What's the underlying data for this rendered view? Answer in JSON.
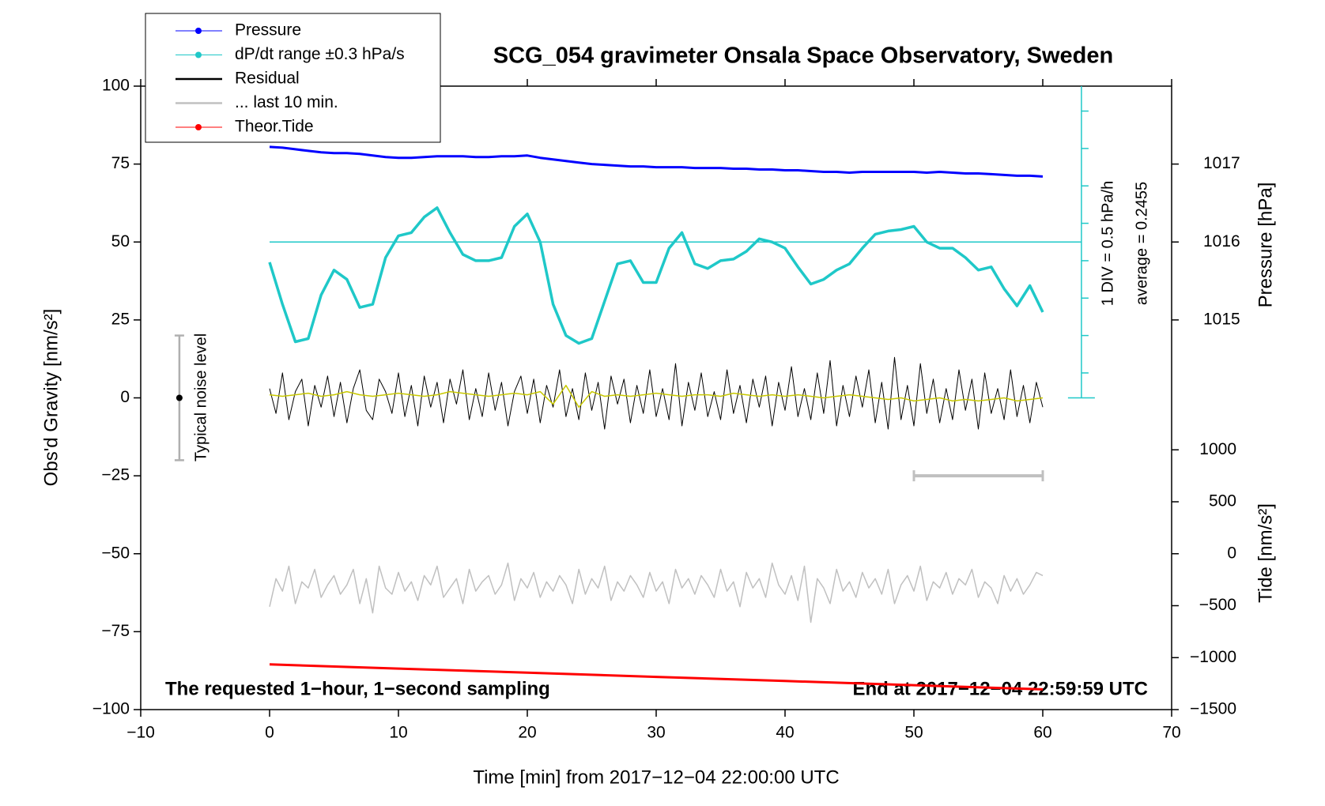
{
  "chart_data": {
    "type": "line",
    "title": "SCG_054 gravimeter Onsala Space Observatory, Sweden",
    "xlabel": "Time [min] from 2017−12−04 22:00:00 UTC",
    "ylabel": "Obs'd Gravity [nm/s²]",
    "y2label": "Pressure [hPa]",
    "y3label": "Tide [nm/s²]",
    "xlim": [
      -10,
      70
    ],
    "xticks": [
      {
        "value": -10,
        "label": "−10"
      },
      0,
      10,
      20,
      30,
      40,
      50,
      60,
      70
    ],
    "ylim": [
      -100,
      100
    ],
    "yticks": [
      {
        "value": -100,
        "label": "−100"
      },
      {
        "value": -75,
        "label": "−75"
      },
      {
        "value": -50,
        "label": "−50"
      },
      {
        "value": -25,
        "label": "−25"
      },
      0,
      25,
      50,
      75,
      100
    ],
    "y2lim": [
      1010,
      1018
    ],
    "y2ticks": [
      1015,
      1016,
      1017
    ],
    "y3lim": [
      -1500,
      4500
    ],
    "y3ticks": [
      {
        "value": -1500,
        "label": "−1500"
      },
      {
        "value": -1000,
        "label": "−1000"
      },
      {
        "value": -500,
        "label": "−500"
      },
      0,
      500,
      1000
    ],
    "legend": "top-left",
    "series": [
      {
        "name": "Pressure",
        "color": "#0000ff",
        "marker": "dot",
        "axis": "y2",
        "x": [
          0,
          1,
          2,
          3,
          4,
          5,
          6,
          7,
          8,
          9,
          10,
          11,
          12,
          13,
          14,
          15,
          16,
          17,
          18,
          19,
          20,
          21,
          22,
          23,
          24,
          25,
          26,
          27,
          28,
          29,
          30,
          31,
          32,
          33,
          34,
          35,
          36,
          37,
          38,
          39,
          40,
          41,
          42,
          43,
          44,
          45,
          46,
          47,
          48,
          49,
          50,
          51,
          52,
          53,
          54,
          55,
          56,
          57,
          58,
          59,
          60
        ],
        "values": [
          1017.22,
          1017.21,
          1017.19,
          1017.17,
          1017.15,
          1017.14,
          1017.14,
          1017.13,
          1017.11,
          1017.09,
          1017.08,
          1017.08,
          1017.09,
          1017.1,
          1017.1,
          1017.1,
          1017.09,
          1017.09,
          1017.1,
          1017.1,
          1017.11,
          1017.08,
          1017.06,
          1017.04,
          1017.02,
          1017.0,
          1016.99,
          1016.98,
          1016.97,
          1016.97,
          1016.96,
          1016.96,
          1016.96,
          1016.95,
          1016.95,
          1016.95,
          1016.94,
          1016.94,
          1016.93,
          1016.93,
          1016.92,
          1016.92,
          1016.91,
          1016.9,
          1016.9,
          1016.89,
          1016.9,
          1016.9,
          1016.9,
          1016.9,
          1016.9,
          1016.89,
          1016.9,
          1016.89,
          1016.88,
          1016.88,
          1016.87,
          1016.86,
          1016.85,
          1016.85,
          1016.84
        ]
      },
      {
        "name": "dP/dt range ±0.3 hPa/s",
        "color": "#1fc8c8",
        "marker": "dot",
        "x": [
          0,
          1,
          2,
          3,
          4,
          5,
          6,
          7,
          8,
          9,
          10,
          11,
          12,
          13,
          14,
          15,
          16,
          17,
          18,
          19,
          20,
          21,
          22,
          23,
          24,
          25,
          26,
          27,
          28,
          29,
          30,
          31,
          32,
          33,
          34,
          35,
          36,
          37,
          38,
          39,
          40,
          41,
          42,
          43,
          44,
          45,
          46,
          47,
          48,
          49,
          50,
          51,
          52,
          53,
          54,
          55,
          56,
          57,
          58,
          59,
          60
        ],
        "values": [
          43.5,
          30,
          18,
          19,
          33,
          41,
          38,
          29,
          30,
          45,
          52,
          53,
          58,
          61,
          53,
          46,
          44,
          44,
          45,
          55,
          59,
          50,
          30,
          20,
          17.5,
          19,
          31,
          43,
          44,
          37,
          37,
          48,
          53,
          43,
          41.5,
          44,
          44.5,
          47,
          51,
          50,
          48,
          42,
          36.5,
          38,
          41,
          43,
          48,
          52.5,
          53.5,
          54,
          55,
          50,
          48,
          48,
          45,
          41,
          42,
          35,
          29.5,
          36,
          27.5
        ]
      },
      {
        "name": "Residual",
        "color": "#000000",
        "x": [
          0,
          0.5,
          1,
          1.5,
          2,
          2.5,
          3,
          3.5,
          4,
          4.5,
          5,
          5.5,
          6,
          6.5,
          7,
          7.5,
          8,
          8.5,
          9,
          9.5,
          10,
          10.5,
          11,
          11.5,
          12,
          12.5,
          13,
          13.5,
          14,
          14.5,
          15,
          15.5,
          16,
          16.5,
          17,
          17.5,
          18,
          18.5,
          19,
          19.5,
          20,
          20.5,
          21,
          21.5,
          22,
          22.5,
          23,
          23.5,
          24,
          24.5,
          25,
          25.5,
          26,
          26.5,
          27,
          27.5,
          28,
          28.5,
          29,
          29.5,
          30,
          30.5,
          31,
          31.5,
          32,
          32.5,
          33,
          33.5,
          34,
          34.5,
          35,
          35.5,
          36,
          36.5,
          37,
          37.5,
          38,
          38.5,
          39,
          39.5,
          40,
          40.5,
          41,
          41.5,
          42,
          42.5,
          43,
          43.5,
          44,
          44.5,
          45,
          45.5,
          46,
          46.5,
          47,
          47.5,
          48,
          48.5,
          49,
          49.5,
          50,
          50.5,
          51,
          51.5,
          52,
          52.5,
          53,
          53.5,
          54,
          54.5,
          55,
          55.5,
          56,
          56.5,
          57,
          57.5,
          58,
          58.5,
          59,
          59.5,
          60
        ],
        "values": [
          3,
          -5,
          8,
          -7,
          2,
          6,
          -9,
          4,
          -3,
          7,
          -6,
          5,
          -8,
          3,
          9,
          -4,
          -7,
          6,
          2,
          -5,
          8,
          -6,
          4,
          -9,
          7,
          -3,
          5,
          -8,
          6,
          -2,
          9,
          -7,
          3,
          -6,
          8,
          -4,
          5,
          -9,
          2,
          7,
          -5,
          6,
          -8,
          4,
          -3,
          9,
          -6,
          3,
          -7,
          8,
          -4,
          5,
          -10,
          7,
          -2,
          6,
          -8,
          4,
          -5,
          9,
          -6,
          3,
          -7,
          11,
          -9,
          5,
          -4,
          8,
          -6,
          2,
          -7,
          9,
          -5,
          4,
          -8,
          6,
          -3,
          7,
          -9,
          5,
          -4,
          10,
          -6,
          3,
          -7,
          8,
          -5,
          12,
          -9,
          4,
          -6,
          7,
          -3,
          9,
          -8,
          5,
          -10,
          13,
          -7,
          4,
          -9,
          11,
          -5,
          6,
          -8,
          3,
          -7,
          9,
          -4,
          6,
          -10,
          8,
          -5,
          3,
          -7,
          9,
          -6,
          4,
          -8,
          5,
          -3
        ]
      },
      {
        "name": "... last 10 min.",
        "color": "#c0c0c0",
        "x": [
          0,
          0.5,
          1,
          1.5,
          2,
          2.5,
          3,
          3.5,
          4,
          4.5,
          5,
          5.5,
          6,
          6.5,
          7,
          7.5,
          8,
          8.5,
          9,
          9.5,
          10,
          10.5,
          11,
          11.5,
          12,
          12.5,
          13,
          13.5,
          14,
          14.5,
          15,
          15.5,
          16,
          16.5,
          17,
          17.5,
          18,
          18.5,
          19,
          19.5,
          20,
          20.5,
          21,
          21.5,
          22,
          22.5,
          23,
          23.5,
          24,
          24.5,
          25,
          25.5,
          26,
          26.5,
          27,
          27.5,
          28,
          28.5,
          29,
          29.5,
          30,
          30.5,
          31,
          31.5,
          32,
          32.5,
          33,
          33.5,
          34,
          34.5,
          35,
          35.5,
          36,
          36.5,
          37,
          37.5,
          38,
          38.5,
          39,
          39.5,
          40,
          40.5,
          41,
          41.5,
          42,
          42.5,
          43,
          43.5,
          44,
          44.5,
          45,
          45.5,
          46,
          46.5,
          47,
          47.5,
          48,
          48.5,
          49,
          49.5,
          50,
          50.5,
          51,
          51.5,
          52,
          52.5,
          53,
          53.5,
          54,
          54.5,
          55,
          55.5,
          56,
          56.5,
          57,
          57.5,
          58,
          58.5,
          59,
          59.5,
          60
        ],
        "values": [
          -67,
          -58,
          -62,
          -54,
          -66,
          -59,
          -61,
          -55,
          -64,
          -60,
          -57,
          -63,
          -60,
          -55,
          -66,
          -58,
          -69,
          -54,
          -61,
          -63,
          -56,
          -62,
          -59,
          -65,
          -57,
          -60,
          -54,
          -64,
          -61,
          -58,
          -66,
          -55,
          -62,
          -59,
          -57,
          -63,
          -60,
          -53,
          -65,
          -58,
          -61,
          -56,
          -64,
          -59,
          -62,
          -57,
          -60,
          -66,
          -55,
          -63,
          -58,
          -61,
          -54,
          -65,
          -59,
          -62,
          -57,
          -60,
          -64,
          -56,
          -62,
          -59,
          -66,
          -55,
          -61,
          -58,
          -63,
          -57,
          -60,
          -64,
          -55,
          -62,
          -59,
          -67,
          -56,
          -61,
          -58,
          -64,
          -53,
          -60,
          -63,
          -57,
          -65,
          -54,
          -72,
          -58,
          -61,
          -66,
          -55,
          -62,
          -59,
          -64,
          -56,
          -61,
          -58,
          -63,
          -55,
          -66,
          -60,
          -57,
          -62,
          -54,
          -65,
          -59,
          -61,
          -56,
          -63,
          -58,
          -60,
          -55,
          -64,
          -59,
          -61,
          -66,
          -57,
          -62,
          -58,
          -63,
          -60,
          -56,
          -57
        ]
      },
      {
        "name": "Theor.Tide",
        "color": "#ff0000",
        "marker": "dot",
        "axis": "y3",
        "x": [
          0,
          10,
          20,
          30,
          40,
          50,
          60
        ],
        "values": [
          -1065,
          -1105,
          -1145,
          -1185,
          -1225,
          -1265,
          -1305
        ]
      },
      {
        "color": "#c8c800",
        "x": [
          0,
          1,
          2,
          3,
          4,
          5,
          6,
          7,
          8,
          9,
          10,
          11,
          12,
          13,
          14,
          15,
          16,
          17,
          18,
          19,
          20,
          21,
          22,
          23,
          24,
          25,
          26,
          27,
          28,
          29,
          30,
          31,
          32,
          33,
          34,
          35,
          36,
          37,
          38,
          39,
          40,
          41,
          42,
          43,
          44,
          45,
          46,
          47,
          48,
          49,
          50,
          51,
          52,
          53,
          54,
          55,
          56,
          57,
          58,
          59,
          60
        ],
        "values": [
          1,
          0.5,
          1,
          1.5,
          0.5,
          1,
          2,
          1,
          0.5,
          1,
          1.5,
          1,
          0.5,
          1,
          2,
          1.5,
          1,
          0.5,
          1,
          1.5,
          1,
          2,
          -2,
          4,
          -3,
          2,
          0.5,
          1,
          0.5,
          1,
          1.5,
          1,
          0.5,
          1,
          1,
          0.5,
          1.5,
          1,
          0.5,
          1,
          0.5,
          1,
          0.5,
          0,
          0.5,
          1,
          0.5,
          0,
          -0.5,
          0,
          -1,
          -0.5,
          0,
          -1,
          -0.5,
          -1,
          -0.5,
          0,
          -1,
          -0.5,
          0
        ]
      }
    ],
    "dpdt_axis": {
      "x": 63,
      "range": [
        0,
        100
      ],
      "ticks": [
        8,
        20,
        32,
        44,
        56,
        68,
        80,
        92
      ],
      "center": 50,
      "label": "1 DIV = 0.5 hPa/h",
      "average_label": "average = 0.2455"
    },
    "noise_bar": {
      "label": "Typical noise level",
      "x": -7,
      "low": -20,
      "center": 0,
      "high": 20
    },
    "scale_bar": {
      "x": [
        50,
        60
      ],
      "y": -25
    },
    "annotations": [
      "The requested 1−hour, 1−second sampling",
      "End at 2017−12−04 22:59:59 UTC"
    ]
  }
}
